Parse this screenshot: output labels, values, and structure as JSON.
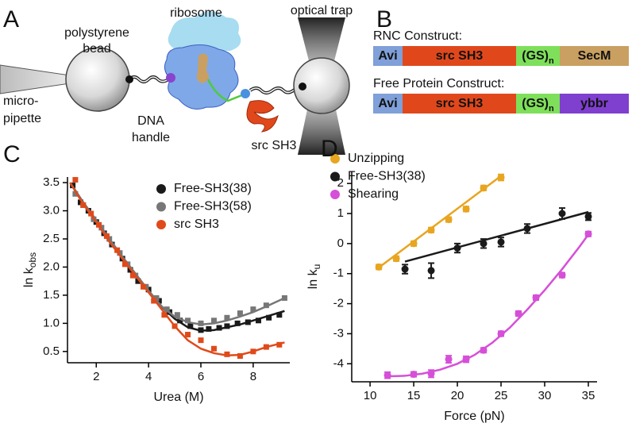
{
  "panel_a": {
    "panel": "A",
    "bead": [
      "polystyrene",
      "bead"
    ],
    "ribosome": "ribosome",
    "trap": "optical trap",
    "pipette": [
      "micro-",
      "pipette"
    ],
    "handle": [
      "DNA",
      "handle"
    ],
    "protein": "src SH3"
  },
  "panel_b": {
    "panel": "B",
    "constructs": [
      {
        "title": "RNC Construct:",
        "segments": [
          {
            "text": "Avi",
            "color": "#7fa0d8"
          },
          {
            "text": "src SH3",
            "color": "#e0481c"
          },
          {
            "text": "(GS)",
            "sub": "n",
            "color": "#7ee05a"
          },
          {
            "text": "SecM",
            "color": "#c9a062"
          }
        ]
      },
      {
        "title": "Free Protein Construct:",
        "segments": [
          {
            "text": "Avi",
            "color": "#7fa0d8"
          },
          {
            "text": "src SH3",
            "color": "#e0481c"
          },
          {
            "text": "(GS)",
            "sub": "n",
            "color": "#7ee05a"
          },
          {
            "text": "ybbr",
            "color": "#7f3fcf"
          }
        ]
      }
    ]
  },
  "chart_data": [
    {
      "type": "scatter",
      "panel": "C",
      "xlabel": "Urea (M)",
      "ylabel": "ln k",
      "ylabel_sub": "obs",
      "legend": "upper right",
      "xlim": [
        0.9,
        9.4
      ],
      "ylim": [
        0.3,
        3.6
      ],
      "xticks": [
        2,
        4,
        6,
        8
      ],
      "yticks": [
        0.5,
        {
          "value": 1,
          "label": "1.0"
        },
        1.5,
        {
          "value": 2,
          "label": "2.0"
        },
        2.5,
        {
          "value": 3,
          "label": "3.0"
        },
        3.5
      ],
      "series": [
        {
          "name": "Free-SH3(38)",
          "color": "#1a1a1a",
          "x": [
            1.1,
            1.4,
            1.7,
            2.0,
            2.3,
            2.6,
            3.0,
            3.3,
            3.6,
            4.0,
            4.4,
            4.8,
            5.2,
            5.6,
            6.0,
            6.3,
            6.7,
            7.0,
            7.4,
            7.8,
            8.2,
            8.6,
            9.0
          ],
          "values": [
            3.45,
            3.15,
            3.0,
            2.8,
            2.6,
            2.4,
            2.15,
            1.95,
            1.75,
            1.6,
            1.4,
            1.2,
            1.05,
            0.95,
            0.88,
            0.9,
            0.92,
            0.95,
            1.0,
            1.02,
            1.05,
            1.1,
            1.15
          ],
          "fit": {
            "x": [
              1,
              1.5,
              2,
              2.5,
              3,
              3.5,
              4,
              4.5,
              5,
              5.5,
              6,
              6.5,
              7,
              7.5,
              8,
              8.5,
              9.2
            ],
            "values": [
              3.5,
              3.15,
              2.83,
              2.5,
              2.18,
              1.88,
              1.58,
              1.3,
              1.08,
              0.93,
              0.87,
              0.88,
              0.93,
              0.98,
              1.05,
              1.12,
              1.22
            ]
          }
        },
        {
          "name": "Free-SH3(58)",
          "color": "#777777",
          "x": [
            1.2,
            1.5,
            1.9,
            2.2,
            2.5,
            2.9,
            3.2,
            3.5,
            3.9,
            4.3,
            4.7,
            5.1,
            5.5,
            6.0,
            6.5,
            7.0,
            7.5,
            8.0,
            8.5,
            9.2
          ],
          "values": [
            3.3,
            3.1,
            2.85,
            2.7,
            2.5,
            2.25,
            2.05,
            1.85,
            1.65,
            1.45,
            1.25,
            1.15,
            1.05,
            1.0,
            1.05,
            1.1,
            1.18,
            1.25,
            1.32,
            1.45
          ],
          "fit": {
            "x": [
              1,
              1.5,
              2,
              2.5,
              3,
              3.5,
              4,
              4.5,
              5,
              5.5,
              6,
              6.5,
              7,
              7.5,
              8,
              8.5,
              9.2
            ],
            "values": [
              3.5,
              3.15,
              2.83,
              2.5,
              2.18,
              1.88,
              1.58,
              1.3,
              1.12,
              1.02,
              0.98,
              1.0,
              1.05,
              1.12,
              1.2,
              1.3,
              1.45
            ]
          }
        },
        {
          "name": "src SH3",
          "color": "#e04a1a",
          "x": [
            1.2,
            1.5,
            1.8,
            2.1,
            2.4,
            2.8,
            3.1,
            3.4,
            3.8,
            4.2,
            4.6,
            5.0,
            5.5,
            6.0,
            6.5,
            7.0,
            7.5,
            8.0,
            8.5,
            9.0
          ],
          "values": [
            3.55,
            3.1,
            2.95,
            2.75,
            2.55,
            2.3,
            2.05,
            1.85,
            1.65,
            1.4,
            1.15,
            0.95,
            0.8,
            0.7,
            0.55,
            0.45,
            0.42,
            0.5,
            0.58,
            0.62
          ],
          "fit": {
            "x": [
              1,
              1.5,
              2,
              2.5,
              3,
              3.5,
              4,
              4.5,
              5,
              5.5,
              6,
              6.5,
              7,
              7.5,
              8,
              8.5,
              9.2
            ],
            "values": [
              3.5,
              3.12,
              2.8,
              2.45,
              2.15,
              1.85,
              1.55,
              1.25,
              0.95,
              0.7,
              0.55,
              0.47,
              0.43,
              0.44,
              0.5,
              0.58,
              0.66
            ]
          }
        }
      ]
    },
    {
      "type": "scatter",
      "panel": "D",
      "xlabel": "Force (pN)",
      "ylabel": "ln k",
      "ylabel_sub": "u",
      "legend": "upper left",
      "xlim": [
        7.9,
        36
      ],
      "ylim": [
        -4.6,
        2.4
      ],
      "xticks": [
        10,
        15,
        20,
        25,
        30,
        35
      ],
      "yticks": [
        -4,
        -3,
        -2,
        -1,
        0,
        1,
        2
      ],
      "series": [
        {
          "name": "Unzipping",
          "color": "#e8a520",
          "x": [
            11,
            13,
            15,
            17,
            19,
            21,
            23,
            25
          ],
          "values": [
            -0.78,
            -0.5,
            0.0,
            0.45,
            0.8,
            1.15,
            1.85,
            2.2
          ],
          "errors": [
            0.08,
            0.08,
            0.08,
            0.08,
            0.08,
            0.08,
            0.08,
            0.1
          ],
          "fit": {
            "x": [
              11,
              25
            ],
            "values": [
              -0.8,
              2.25
            ]
          }
        },
        {
          "name": "Free-SH3(38)",
          "color": "#1a1a1a",
          "x": [
            14,
            17,
            20,
            23,
            25,
            28,
            32,
            35
          ],
          "values": [
            -0.85,
            -0.9,
            -0.15,
            0.0,
            0.05,
            0.5,
            1.0,
            0.9
          ],
          "errors": [
            0.15,
            0.25,
            0.15,
            0.15,
            0.15,
            0.15,
            0.18,
            0.12
          ],
          "fit": {
            "x": [
              14,
              35
            ],
            "values": [
              -0.6,
              1.05
            ]
          }
        },
        {
          "name": "Shearing",
          "color": "#d64fd8",
          "x": [
            12,
            15,
            17,
            19,
            21,
            23,
            25,
            27,
            29,
            32,
            35
          ],
          "values": [
            -4.38,
            -4.35,
            -4.33,
            -3.85,
            -3.85,
            -3.55,
            -3.0,
            -2.33,
            -1.8,
            -1.05,
            0.32
          ],
          "errors": [
            0.1,
            0.08,
            0.12,
            0.12,
            0.1,
            0.08,
            0.08,
            0.08,
            0.08,
            0.08,
            0.08
          ],
          "fit": {
            "x": [
              12,
              14,
              16,
              18,
              20,
              22,
              24,
              26,
              28,
              30,
              32,
              34,
              35
            ],
            "values": [
              -4.42,
              -4.4,
              -4.33,
              -4.2,
              -4.0,
              -3.7,
              -3.3,
              -2.8,
              -2.2,
              -1.55,
              -0.85,
              -0.1,
              0.3
            ]
          }
        }
      ]
    }
  ]
}
